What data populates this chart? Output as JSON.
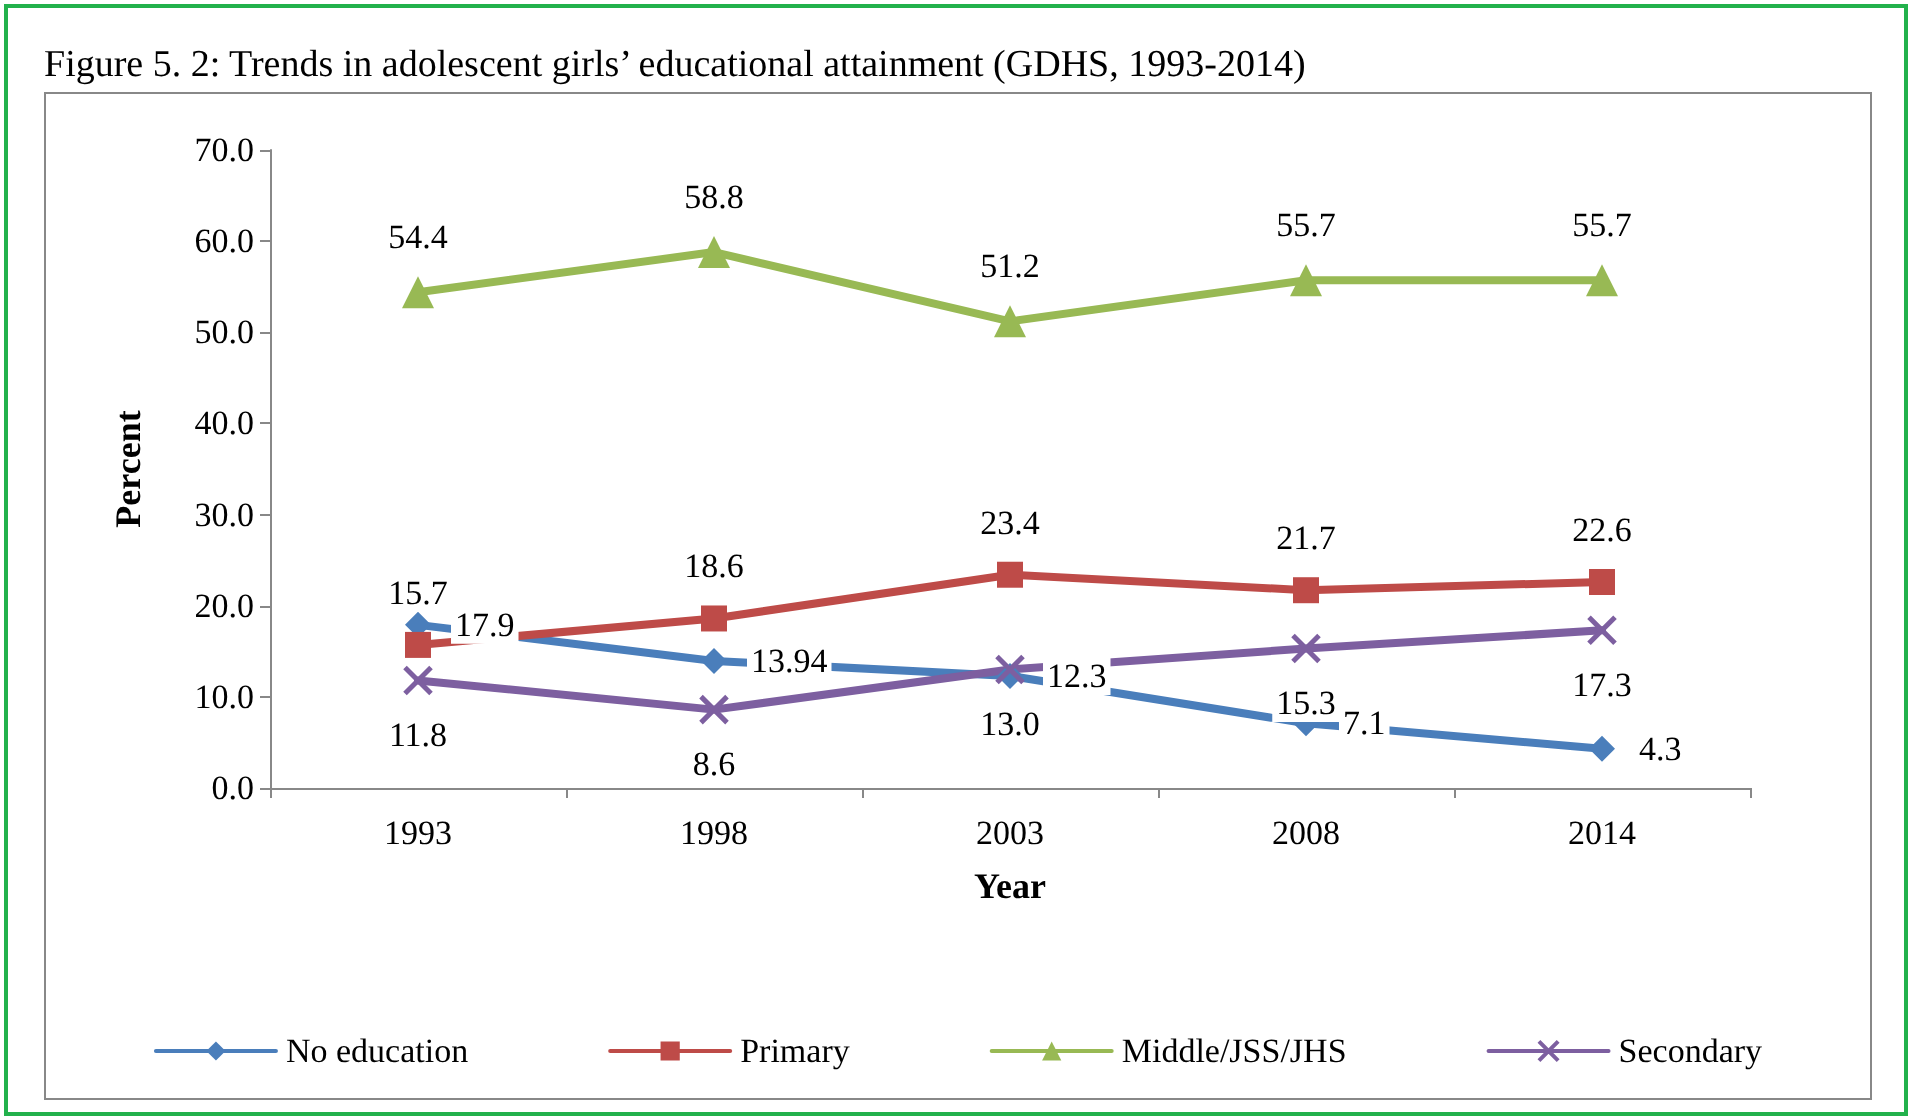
{
  "chart_data": {
    "type": "line",
    "title": "Figure 5. 2: Trends in adolescent girls’ educational attainment (GDHS, 1993-2014)",
    "xlabel": "Year",
    "ylabel": "Percent",
    "categories": [
      "1993",
      "1998",
      "2003",
      "2008",
      "2014"
    ],
    "series": [
      {
        "name": "No education",
        "color": "#4a7ebb",
        "marker": "diamond",
        "values": [
          17.9,
          13.94,
          12.3,
          7.1,
          4.3
        ],
        "value_labels": [
          "17.9",
          "13.94",
          "12.3",
          "7.1",
          "4.3"
        ]
      },
      {
        "name": "Primary",
        "color": "#be4b48",
        "marker": "square",
        "values": [
          15.7,
          18.6,
          23.4,
          21.7,
          22.6
        ],
        "value_labels": [
          "15.7",
          "18.6",
          "23.4",
          "21.7",
          "22.6"
        ]
      },
      {
        "name": "Middle/JSS/JHS",
        "color": "#98b954",
        "marker": "triangle",
        "values": [
          54.4,
          58.8,
          51.2,
          55.7,
          55.7
        ],
        "value_labels": [
          "54.4",
          "58.8",
          "51.2",
          "55.7",
          "55.7"
        ]
      },
      {
        "name": "Secondary",
        "color": "#7d5fa0",
        "marker": "cross",
        "values": [
          11.8,
          8.6,
          13.0,
          15.3,
          17.3
        ],
        "value_labels": [
          "11.8",
          "8.6",
          "13.0",
          "15.3",
          "17.3"
        ]
      }
    ],
    "ylim": [
      0,
      70
    ],
    "yticks": [
      {
        "value": 0,
        "label": "0.0"
      },
      {
        "value": 10,
        "label": "10.0"
      },
      {
        "value": 20,
        "label": "20.0"
      },
      {
        "value": 30,
        "label": "30.0"
      },
      {
        "value": 40,
        "label": "40.0"
      },
      {
        "value": 50,
        "label": "50.0"
      },
      {
        "value": 60,
        "label": "60.0"
      },
      {
        "value": 70,
        "label": "70.0"
      }
    ],
    "grid": false,
    "legend": "bottom",
    "line_style": "solid"
  }
}
